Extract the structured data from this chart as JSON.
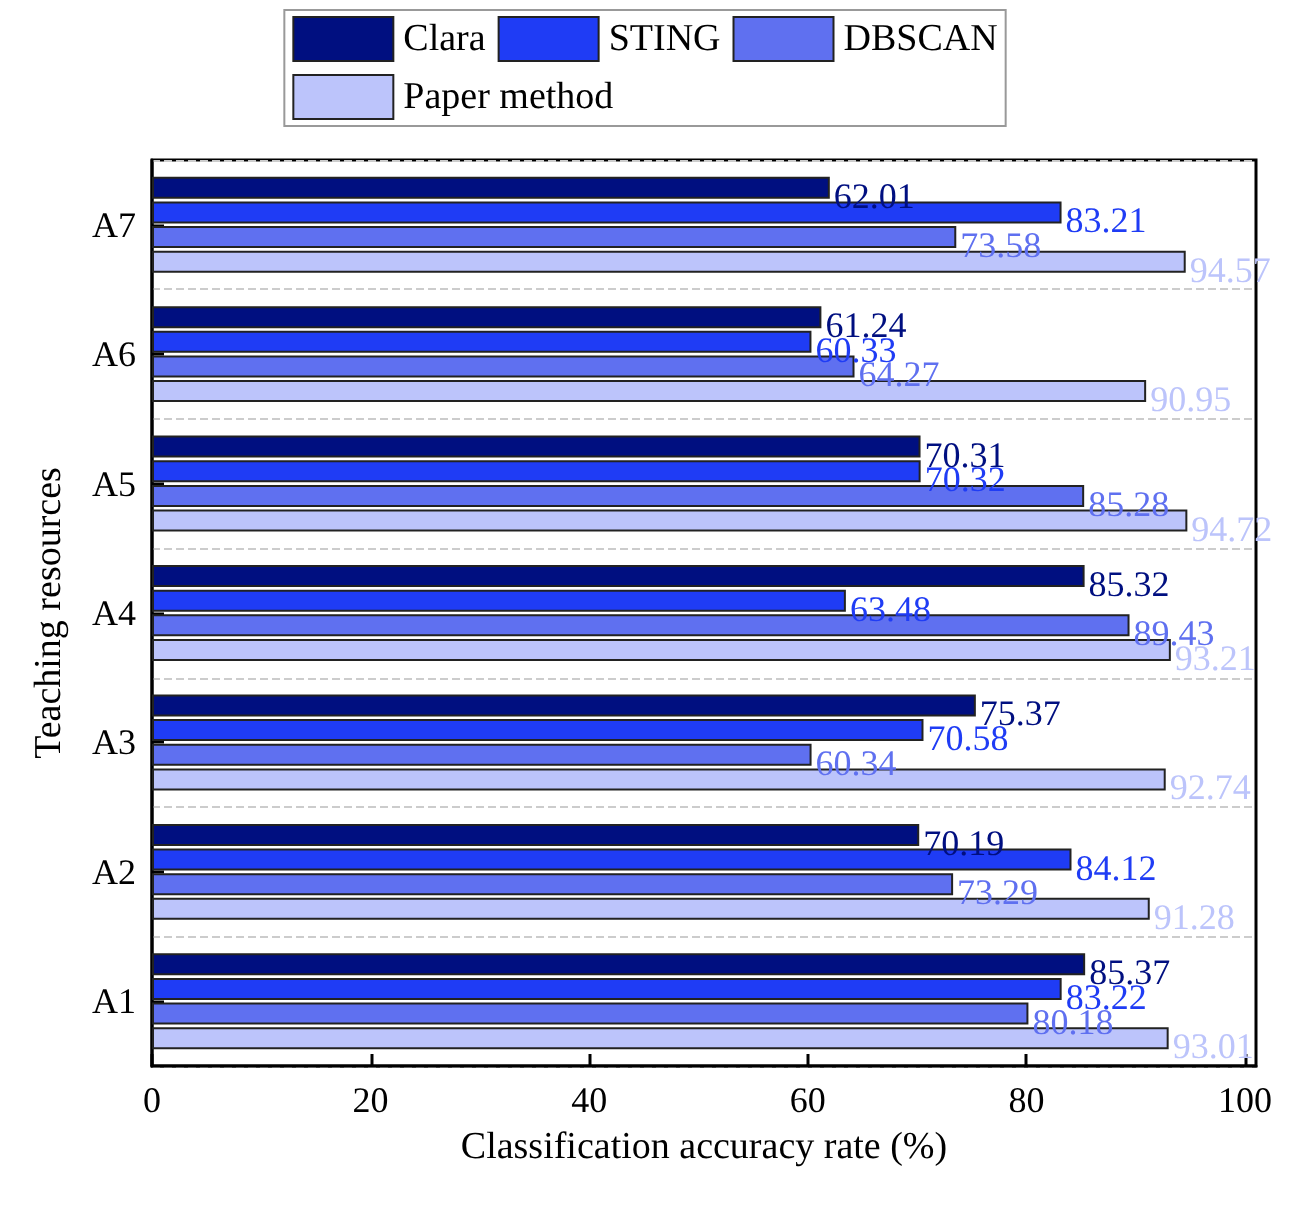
{
  "chart_data": {
    "type": "bar",
    "orientation": "horizontal",
    "xlabel": "Classification accuracy rate (%)",
    "ylabel": "Teaching resources",
    "categories": [
      "A7",
      "A6",
      "A5",
      "A4",
      "A3",
      "A2",
      "A1"
    ],
    "series": [
      {
        "name": "Clara",
        "color": "#000f80",
        "values": [
          62.01,
          61.24,
          70.31,
          85.32,
          75.37,
          70.19,
          85.37
        ]
      },
      {
        "name": "STING",
        "color": "#1f3cf5",
        "values": [
          83.21,
          60.33,
          70.32,
          63.48,
          70.58,
          84.12,
          83.22
        ]
      },
      {
        "name": "DBSCAN",
        "color": "#5f70f0",
        "values": [
          73.58,
          64.27,
          85.28,
          89.43,
          60.34,
          73.29,
          80.18
        ]
      },
      {
        "name": "Paper method",
        "color": "#bcc4fb",
        "values": [
          94.57,
          90.95,
          94.72,
          93.21,
          92.74,
          91.28,
          93.01
        ]
      }
    ],
    "xlim": [
      0,
      101
    ],
    "xticks": [
      0,
      20,
      40,
      60,
      80,
      100
    ],
    "data_labels": true,
    "grid": "y",
    "legend": "top"
  }
}
